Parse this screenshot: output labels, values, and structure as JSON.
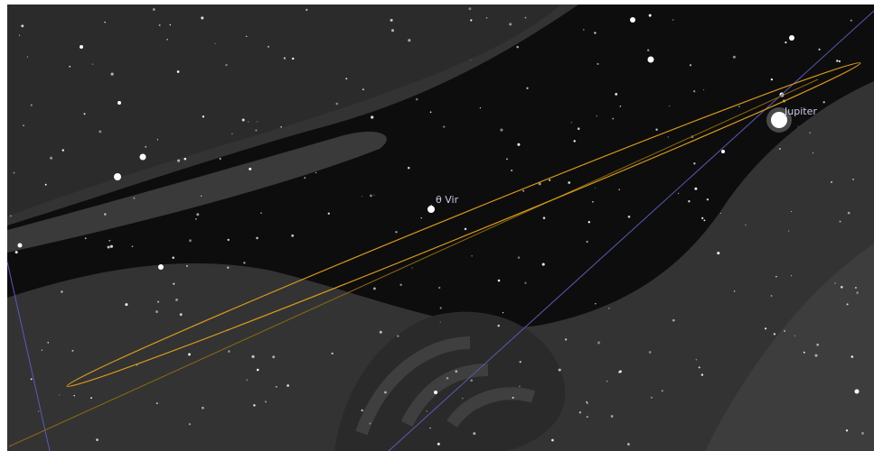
{
  "objects": [
    {
      "label": "θ Vir"
    },
    {
      "label": "Jupiter"
    }
  ]
}
